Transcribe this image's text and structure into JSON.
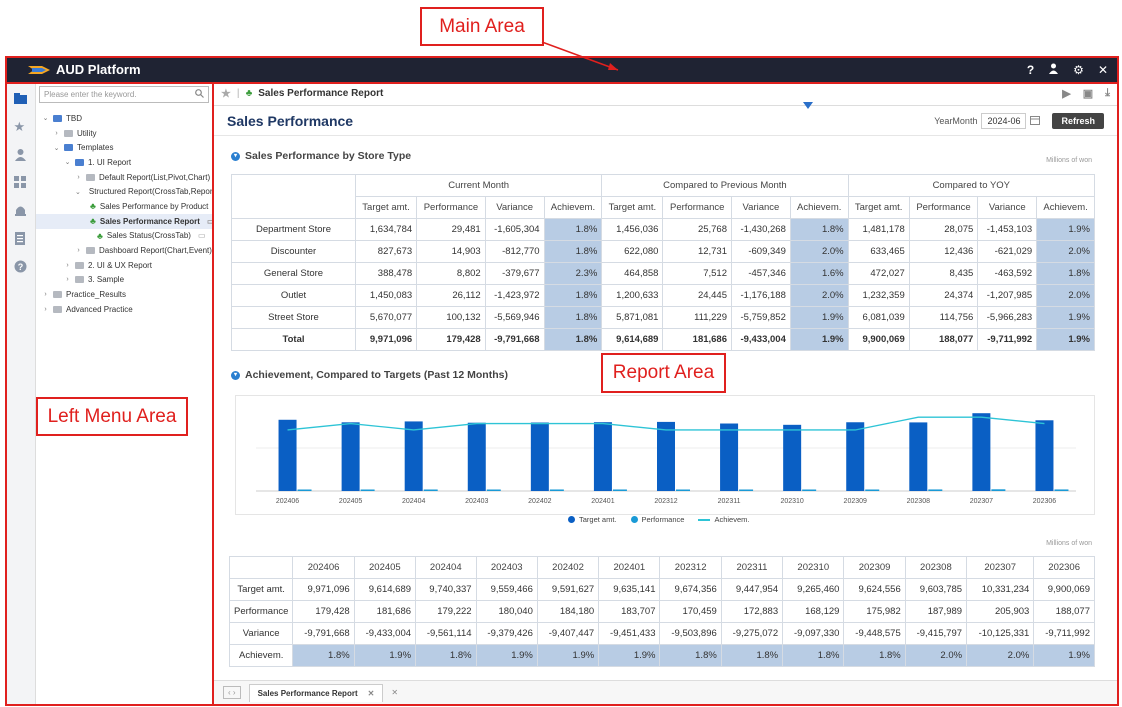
{
  "annotations": {
    "main_area": "Main Area",
    "left_menu_area": "Left Menu Area",
    "report_area": "Report Area"
  },
  "app": {
    "title": "AUD Platform",
    "icons": [
      "help-icon",
      "user-icon",
      "gear-icon",
      "close-icon"
    ]
  },
  "menu": {
    "search_placeholder": "Please enter the keyword.",
    "tree": [
      {
        "label": "TBD",
        "level": 0,
        "open": true,
        "type": "folder-blue"
      },
      {
        "label": "Utility",
        "level": 1,
        "open": false,
        "type": "folder-grey"
      },
      {
        "label": "Templates",
        "level": 1,
        "open": true,
        "type": "folder-blue"
      },
      {
        "label": "1. UI Report",
        "level": 2,
        "open": true,
        "type": "folder-blue"
      },
      {
        "label": "Default Report(List,Pivot,Chart)",
        "level": 3,
        "open": false,
        "type": "folder-grey"
      },
      {
        "label": "Structured Report(CrossTab,Report)",
        "level": 3,
        "open": true,
        "type": "folder-blue"
      },
      {
        "label": "Sales Performance by Product",
        "level": 4,
        "type": "report"
      },
      {
        "label": "Sales Performance Report",
        "level": 4,
        "type": "report",
        "selected": true
      },
      {
        "label": "Sales Status(CrossTab)",
        "level": 4,
        "type": "report"
      },
      {
        "label": "Dashboard Report(Chart,Event)",
        "level": 3,
        "open": false,
        "type": "folder-grey"
      },
      {
        "label": "2. UI & UX Report",
        "level": 2,
        "open": false,
        "type": "folder-grey"
      },
      {
        "label": "3. Sample",
        "level": 2,
        "open": false,
        "type": "folder-grey"
      },
      {
        "label": "Practice_Results",
        "level": 0,
        "open": false,
        "type": "folder-grey"
      },
      {
        "label": "Advanced Practice",
        "level": 0,
        "open": false,
        "type": "folder-grey"
      }
    ]
  },
  "report": {
    "tab_title": "Sales Performance Report",
    "title": "Sales Performance",
    "yearmonth_label": "YearMonth",
    "yearmonth_value": "2024-06",
    "refresh_label": "Refresh",
    "section1_title": "Sales Performance by Store Type",
    "section2_title": "Achievement, Compared to Targets (Past 12 Months)",
    "unit": "Millions of won"
  },
  "store_table": {
    "groups": [
      "Current Month",
      "Compared to Previous Month",
      "Compared to YOY"
    ],
    "subheaders": [
      "Target amt.",
      "Performance",
      "Variance",
      "Achievem."
    ],
    "rows": [
      {
        "label": "Department Store",
        "vals": [
          "1,634,784",
          "29,481",
          "-1,605,304",
          "1.8%",
          "1,456,036",
          "25,768",
          "-1,430,268",
          "1.8%",
          "1,481,178",
          "28,075",
          "-1,453,103",
          "1.9%"
        ]
      },
      {
        "label": "Discounter",
        "vals": [
          "827,673",
          "14,903",
          "-812,770",
          "1.8%",
          "622,080",
          "12,731",
          "-609,349",
          "2.0%",
          "633,465",
          "12,436",
          "-621,029",
          "2.0%"
        ]
      },
      {
        "label": "General Store",
        "vals": [
          "388,478",
          "8,802",
          "-379,677",
          "2.3%",
          "464,858",
          "7,512",
          "-457,346",
          "1.6%",
          "472,027",
          "8,435",
          "-463,592",
          "1.8%"
        ]
      },
      {
        "label": "Outlet",
        "vals": [
          "1,450,083",
          "26,112",
          "-1,423,972",
          "1.8%",
          "1,200,633",
          "24,445",
          "-1,176,188",
          "2.0%",
          "1,232,359",
          "24,374",
          "-1,207,985",
          "2.0%"
        ]
      },
      {
        "label": "Street Store",
        "vals": [
          "5,670,077",
          "100,132",
          "-5,569,946",
          "1.8%",
          "5,871,081",
          "111,229",
          "-5,759,852",
          "1.9%",
          "6,081,039",
          "114,756",
          "-5,966,283",
          "1.9%"
        ]
      },
      {
        "label": "Total",
        "vals": [
          "9,971,096",
          "179,428",
          "-9,791,668",
          "1.8%",
          "9,614,689",
          "181,686",
          "-9,433,004",
          "1.9%",
          "9,900,069",
          "188,077",
          "-9,711,992",
          "1.9%"
        ]
      }
    ]
  },
  "chart_data": {
    "type": "bar",
    "categories": [
      "202406",
      "202405",
      "202404",
      "202403",
      "202402",
      "202401",
      "202312",
      "202311",
      "202310",
      "202309",
      "202308",
      "202307",
      "202306"
    ],
    "series": [
      {
        "name": "Target amt.",
        "values": [
          9971096,
          9614689,
          9740337,
          9559466,
          9591627,
          9635141,
          9674356,
          9447954,
          9265460,
          9624556,
          9603785,
          10331234,
          9900069
        ]
      },
      {
        "name": "Performance",
        "values": [
          179428,
          181686,
          179222,
          180040,
          184180,
          183707,
          170459,
          172883,
          168129,
          175982,
          187989,
          205903,
          188077
        ]
      },
      {
        "name": "Achievem.",
        "values": [
          1.8,
          1.9,
          1.8,
          1.9,
          1.9,
          1.9,
          1.8,
          1.8,
          1.8,
          1.8,
          2.0,
          2.0,
          1.9
        ]
      }
    ],
    "colors": {
      "Target amt.": "#0a5fc4",
      "Performance": "#1a9ad6",
      "Achievem.": "#2ec4d6"
    }
  },
  "month_table": {
    "rows": [
      {
        "label": "Target amt.",
        "vals": [
          "9,971,096",
          "9,614,689",
          "9,740,337",
          "9,559,466",
          "9,591,627",
          "9,635,141",
          "9,674,356",
          "9,447,954",
          "9,265,460",
          "9,624,556",
          "9,603,785",
          "10,331,234",
          "9,900,069"
        ]
      },
      {
        "label": "Performance",
        "vals": [
          "179,428",
          "181,686",
          "179,222",
          "180,040",
          "184,180",
          "183,707",
          "170,459",
          "172,883",
          "168,129",
          "175,982",
          "187,989",
          "205,903",
          "188,077"
        ]
      },
      {
        "label": "Variance",
        "vals": [
          "-9,791,668",
          "-9,433,004",
          "-9,561,114",
          "-9,379,426",
          "-9,407,447",
          "-9,451,433",
          "-9,503,896",
          "-9,275,072",
          "-9,097,330",
          "-9,448,575",
          "-9,415,797",
          "-10,125,331",
          "-9,711,992"
        ]
      },
      {
        "label": "Achievem.",
        "vals": [
          "1.8%",
          "1.9%",
          "1.8%",
          "1.9%",
          "1.9%",
          "1.9%",
          "1.8%",
          "1.8%",
          "1.8%",
          "1.8%",
          "2.0%",
          "2.0%",
          "1.9%"
        ]
      }
    ]
  },
  "bottom_tab": "Sales Performance Report"
}
